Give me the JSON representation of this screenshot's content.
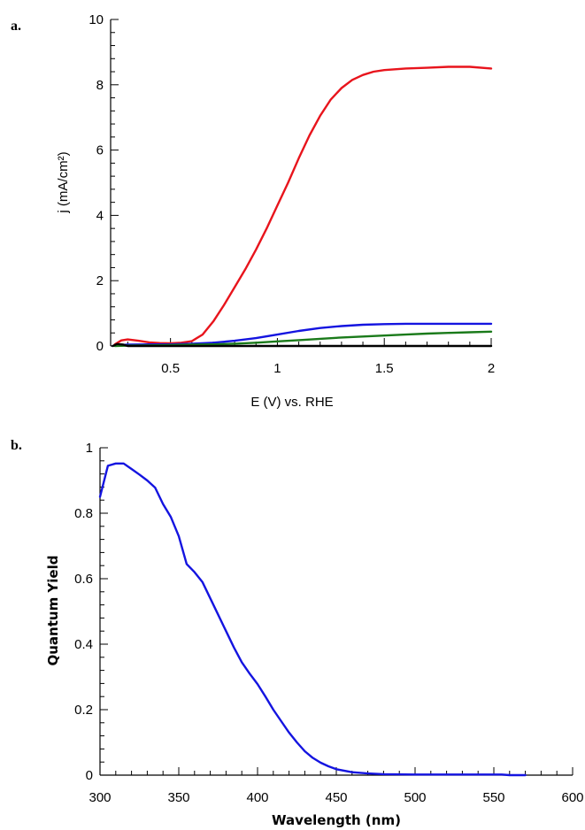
{
  "panels": {
    "a": "a.",
    "b": "b."
  },
  "chart_data": [
    {
      "type": "line",
      "xlabel": "E (V) vs. RHE",
      "ylabel": "j (mA/cm²)",
      "xlim": [
        0.22,
        2.0
      ],
      "ylim": [
        0,
        10
      ],
      "x_ticks": [
        0.5,
        1,
        1.5,
        2
      ],
      "x_tick_labels": [
        "0.5",
        "1",
        "1.5",
        "2"
      ],
      "y_ticks": [
        0,
        2,
        4,
        6,
        8,
        10
      ],
      "y_tick_labels": [
        "0",
        "2",
        "4",
        "6",
        "8",
        "10"
      ],
      "grid": false,
      "series": [
        {
          "color": "#e8141c",
          "x": [
            0.24,
            0.27,
            0.3,
            0.35,
            0.4,
            0.45,
            0.5,
            0.55,
            0.6,
            0.65,
            0.7,
            0.75,
            0.8,
            0.85,
            0.9,
            0.95,
            1.0,
            1.05,
            1.1,
            1.15,
            1.2,
            1.25,
            1.3,
            1.35,
            1.4,
            1.45,
            1.5,
            1.6,
            1.7,
            1.8,
            1.9,
            2.0
          ],
          "y": [
            0.05,
            0.17,
            0.2,
            0.16,
            0.11,
            0.09,
            0.08,
            0.1,
            0.15,
            0.35,
            0.75,
            1.25,
            1.8,
            2.35,
            2.95,
            3.6,
            4.3,
            5.0,
            5.75,
            6.45,
            7.05,
            7.55,
            7.9,
            8.15,
            8.3,
            8.4,
            8.45,
            8.5,
            8.52,
            8.55,
            8.55,
            8.5
          ]
        },
        {
          "color": "#1414e0",
          "x": [
            0.24,
            0.3,
            0.4,
            0.5,
            0.6,
            0.7,
            0.8,
            0.9,
            1.0,
            1.1,
            1.2,
            1.3,
            1.4,
            1.5,
            1.6,
            1.7,
            1.8,
            1.9,
            2.0
          ],
          "y": [
            0.02,
            0.04,
            0.05,
            0.05,
            0.07,
            0.1,
            0.16,
            0.24,
            0.35,
            0.46,
            0.55,
            0.61,
            0.65,
            0.67,
            0.68,
            0.68,
            0.68,
            0.68,
            0.68
          ]
        },
        {
          "color": "#1a7a1a",
          "x": [
            0.24,
            0.3,
            0.4,
            0.5,
            0.6,
            0.7,
            0.8,
            0.9,
            1.0,
            1.1,
            1.2,
            1.3,
            1.4,
            1.5,
            1.6,
            1.7,
            1.8,
            1.9,
            2.0
          ],
          "y": [
            0.0,
            0.01,
            0.02,
            0.03,
            0.04,
            0.05,
            0.07,
            0.1,
            0.14,
            0.18,
            0.22,
            0.26,
            0.29,
            0.32,
            0.35,
            0.38,
            0.4,
            0.42,
            0.44
          ]
        },
        {
          "color": "#000000",
          "x": [
            0.23,
            0.25,
            0.28,
            0.3,
            0.4,
            0.5,
            0.7,
            1.0,
            1.5,
            2.0
          ],
          "y": [
            0.0,
            0.06,
            0.04,
            0.0,
            0.0,
            0.0,
            0.0,
            0.0,
            0.0,
            0.0
          ]
        }
      ]
    },
    {
      "type": "line",
      "xlabel": "Wavelength (nm)",
      "ylabel": "Quantum Yield",
      "xlim": [
        300,
        600
      ],
      "ylim": [
        0,
        1
      ],
      "x_ticks": [
        300,
        350,
        400,
        450,
        500,
        550,
        600
      ],
      "x_tick_labels": [
        "300",
        "350",
        "400",
        "450",
        "500",
        "550",
        "600"
      ],
      "y_ticks": [
        0,
        0.2,
        0.4,
        0.6,
        0.8,
        1
      ],
      "y_tick_labels": [
        "0",
        "0.2",
        "0.4",
        "0.6",
        "0.8",
        "1"
      ],
      "grid": false,
      "series": [
        {
          "color": "#1414e0",
          "x": [
            300,
            305,
            310,
            315,
            320,
            325,
            330,
            335,
            340,
            345,
            350,
            355,
            360,
            365,
            370,
            375,
            380,
            385,
            390,
            395,
            400,
            405,
            410,
            415,
            420,
            425,
            430,
            435,
            440,
            445,
            450,
            460,
            470,
            480,
            500,
            520,
            540,
            555,
            560,
            570
          ],
          "y": [
            0.85,
            0.945,
            0.952,
            0.952,
            0.935,
            0.918,
            0.9,
            0.878,
            0.828,
            0.788,
            0.73,
            0.645,
            0.62,
            0.59,
            0.54,
            0.49,
            0.44,
            0.39,
            0.345,
            0.31,
            0.278,
            0.24,
            0.2,
            0.165,
            0.13,
            0.1,
            0.073,
            0.053,
            0.038,
            0.027,
            0.018,
            0.009,
            0.005,
            0.003,
            0.002,
            0.002,
            0.002,
            0.002,
            0.0,
            0.0
          ]
        }
      ]
    }
  ]
}
